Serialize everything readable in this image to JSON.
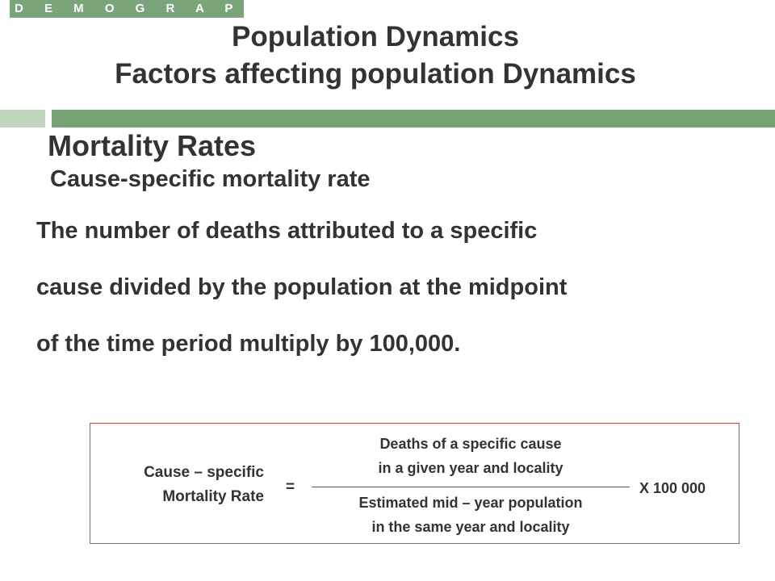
{
  "header": {
    "tag": "D E M O G R A P H Y",
    "title_line1": "Population Dynamics",
    "title_line2": "Factors affecting population Dynamics"
  },
  "section": {
    "heading": "Mortality Rates",
    "subheading": "Cause-specific  mortality rate"
  },
  "body": {
    "line1": "The number of deaths attributed to a specific",
    "line2": "cause divided by the population at the midpoint",
    "line3": "of  the time period multiply by 100,000."
  },
  "formula": {
    "lhs_line1": "Cause – specific",
    "lhs_line2": "Mortality Rate",
    "equals": "=",
    "numerator_line1": "Deaths of a specific cause",
    "numerator_line2": "in a given year and locality",
    "denominator_line1": "Estimated mid – year population",
    "denominator_line2": "in the same  year and locality",
    "multiplier": "X 100 000"
  },
  "colors": {
    "accent_green": "#76a373",
    "light_green": "#c2d6bf",
    "box_border": "#c0504d",
    "text": "#333333"
  }
}
